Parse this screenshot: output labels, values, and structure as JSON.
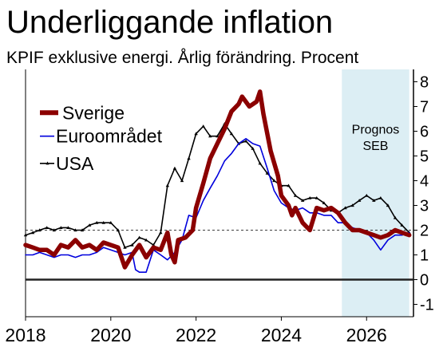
{
  "title": "Underliggande inflation",
  "subtitle": "KPIF exklusive energi. Årlig förändring. Procent",
  "chart_data": {
    "type": "line",
    "xlim": [
      2018,
      2027.1
    ],
    "ylim": [
      -1.5,
      8.5
    ],
    "x_ticks": [
      "2018",
      "2020",
      "2022",
      "2024",
      "2026"
    ],
    "y_ticks": [
      "-1",
      "0",
      "1",
      "2",
      "3",
      "4",
      "5",
      "6",
      "7",
      "8"
    ],
    "y_axis_position": "right",
    "reference_line": 2,
    "zero_line": 0,
    "forecast_region": {
      "start": 2025.42,
      "end": 2027.0,
      "label_line1": "Prognos",
      "label_line2": "SEB",
      "color": "#dceef4"
    },
    "legend_position": "left",
    "series": [
      {
        "name": "Sverige",
        "color": "#8b0000",
        "style": "thick",
        "points": [
          [
            2018,
            1.4
          ],
          [
            2018.17,
            1.3
          ],
          [
            2018.33,
            1.2
          ],
          [
            2018.5,
            1.2
          ],
          [
            2018.67,
            1.0
          ],
          [
            2018.83,
            1.4
          ],
          [
            2019,
            1.3
          ],
          [
            2019.17,
            1.6
          ],
          [
            2019.33,
            1.3
          ],
          [
            2019.5,
            1.4
          ],
          [
            2019.67,
            1.2
          ],
          [
            2019.83,
            1.5
          ],
          [
            2020,
            1.4
          ],
          [
            2020.17,
            1.3
          ],
          [
            2020.33,
            0.5
          ],
          [
            2020.5,
            1.0
          ],
          [
            2020.67,
            1.4
          ],
          [
            2020.83,
            0.9
          ],
          [
            2021,
            1.3
          ],
          [
            2021.17,
            1.2
          ],
          [
            2021.33,
            1.9
          ],
          [
            2021.42,
            1.0
          ],
          [
            2021.5,
            0.7
          ],
          [
            2021.58,
            1.6
          ],
          [
            2021.75,
            1.7
          ],
          [
            2021.92,
            2.0
          ],
          [
            2022,
            2.9
          ],
          [
            2022.17,
            3.9
          ],
          [
            2022.33,
            4.9
          ],
          [
            2022.5,
            5.5
          ],
          [
            2022.67,
            6.1
          ],
          [
            2022.83,
            6.8
          ],
          [
            2023,
            7.1
          ],
          [
            2023.08,
            7.4
          ],
          [
            2023.25,
            7.0
          ],
          [
            2023.42,
            7.2
          ],
          [
            2023.5,
            7.6
          ],
          [
            2023.58,
            6.7
          ],
          [
            2023.75,
            5.2
          ],
          [
            2023.92,
            4.2
          ],
          [
            2024,
            3.4
          ],
          [
            2024.17,
            3.0
          ],
          [
            2024.25,
            2.6
          ],
          [
            2024.33,
            2.9
          ],
          [
            2024.5,
            2.3
          ],
          [
            2024.67,
            2.0
          ],
          [
            2024.83,
            2.9
          ],
          [
            2025,
            2.8
          ],
          [
            2025.17,
            2.9
          ],
          [
            2025.33,
            2.7
          ],
          [
            2025.5,
            2.3
          ],
          [
            2025.67,
            2.0
          ],
          [
            2025.83,
            2.0
          ],
          [
            2026,
            1.9
          ],
          [
            2026.17,
            1.8
          ],
          [
            2026.33,
            1.7
          ],
          [
            2026.5,
            1.8
          ],
          [
            2026.67,
            2.0
          ],
          [
            2026.83,
            1.9
          ],
          [
            2027,
            1.8
          ]
        ]
      },
      {
        "name": "Euroområdet",
        "color": "#0000dd",
        "style": "thin",
        "points": [
          [
            2018,
            1.0
          ],
          [
            2018.17,
            1.0
          ],
          [
            2018.33,
            1.1
          ],
          [
            2018.5,
            1.0
          ],
          [
            2018.67,
            0.9
          ],
          [
            2018.83,
            1.0
          ],
          [
            2019,
            1.0
          ],
          [
            2019.17,
            0.9
          ],
          [
            2019.33,
            1.0
          ],
          [
            2019.5,
            1.0
          ],
          [
            2019.67,
            1.1
          ],
          [
            2019.83,
            1.3
          ],
          [
            2020,
            1.2
          ],
          [
            2020.17,
            1.1
          ],
          [
            2020.33,
            1.0
          ],
          [
            2020.5,
            1.1
          ],
          [
            2020.58,
            0.4
          ],
          [
            2020.67,
            0.3
          ],
          [
            2020.83,
            0.3
          ],
          [
            2021,
            1.2
          ],
          [
            2021.17,
            1.0
          ],
          [
            2021.33,
            0.8
          ],
          [
            2021.5,
            1.1
          ],
          [
            2021.67,
            1.6
          ],
          [
            2021.83,
            2.6
          ],
          [
            2022,
            2.5
          ],
          [
            2022.17,
            3.2
          ],
          [
            2022.33,
            3.7
          ],
          [
            2022.5,
            4.2
          ],
          [
            2022.67,
            4.8
          ],
          [
            2022.83,
            5.1
          ],
          [
            2023,
            5.5
          ],
          [
            2023.17,
            5.7
          ],
          [
            2023.33,
            5.5
          ],
          [
            2023.5,
            5.4
          ],
          [
            2023.67,
            4.5
          ],
          [
            2023.83,
            3.6
          ],
          [
            2024,
            3.1
          ],
          [
            2024.17,
            2.9
          ],
          [
            2024.33,
            2.8
          ],
          [
            2024.5,
            2.9
          ],
          [
            2024.67,
            2.7
          ],
          [
            2024.83,
            2.7
          ],
          [
            2025,
            2.6
          ],
          [
            2025.17,
            2.6
          ],
          [
            2025.33,
            2.3
          ],
          [
            2025.5,
            2.3
          ],
          [
            2025.67,
            2.1
          ],
          [
            2025.83,
            2.0
          ],
          [
            2026,
            1.9
          ],
          [
            2026.17,
            1.6
          ],
          [
            2026.33,
            1.2
          ],
          [
            2026.5,
            1.6
          ],
          [
            2026.67,
            1.8
          ],
          [
            2026.83,
            1.8
          ],
          [
            2027,
            1.9
          ]
        ]
      },
      {
        "name": "USA",
        "color": "#000000",
        "style": "thin-marker",
        "points": [
          [
            2018,
            1.8
          ],
          [
            2018.17,
            1.9
          ],
          [
            2018.33,
            2.0
          ],
          [
            2018.5,
            2.1
          ],
          [
            2018.67,
            2.0
          ],
          [
            2018.83,
            2.1
          ],
          [
            2019,
            2.1
          ],
          [
            2019.17,
            2.0
          ],
          [
            2019.33,
            2.0
          ],
          [
            2019.5,
            2.2
          ],
          [
            2019.67,
            2.3
          ],
          [
            2019.83,
            2.3
          ],
          [
            2020,
            2.3
          ],
          [
            2020.17,
            2.0
          ],
          [
            2020.33,
            1.3
          ],
          [
            2020.5,
            1.4
          ],
          [
            2020.67,
            1.7
          ],
          [
            2020.83,
            1.6
          ],
          [
            2021,
            1.4
          ],
          [
            2021.17,
            1.9
          ],
          [
            2021.33,
            3.8
          ],
          [
            2021.5,
            4.5
          ],
          [
            2021.67,
            4.0
          ],
          [
            2021.83,
            4.9
          ],
          [
            2022,
            5.9
          ],
          [
            2022.17,
            6.2
          ],
          [
            2022.33,
            5.8
          ],
          [
            2022.5,
            5.8
          ],
          [
            2022.67,
            6.3
          ],
          [
            2022.83,
            5.9
          ],
          [
            2023,
            5.5
          ],
          [
            2023.17,
            5.6
          ],
          [
            2023.33,
            5.3
          ],
          [
            2023.5,
            4.7
          ],
          [
            2023.67,
            4.3
          ],
          [
            2023.83,
            4.0
          ],
          [
            2024,
            3.8
          ],
          [
            2024.17,
            3.8
          ],
          [
            2024.33,
            3.4
          ],
          [
            2024.5,
            3.2
          ],
          [
            2024.67,
            3.3
          ],
          [
            2024.83,
            3.3
          ],
          [
            2025,
            3.1
          ],
          [
            2025.17,
            2.8
          ],
          [
            2025.33,
            2.7
          ],
          [
            2025.5,
            2.9
          ],
          [
            2025.67,
            3.0
          ],
          [
            2025.83,
            3.2
          ],
          [
            2026,
            3.4
          ],
          [
            2026.17,
            3.2
          ],
          [
            2026.33,
            3.3
          ],
          [
            2026.5,
            3.0
          ],
          [
            2026.67,
            2.5
          ],
          [
            2026.83,
            2.2
          ],
          [
            2027,
            1.9
          ]
        ]
      }
    ]
  }
}
